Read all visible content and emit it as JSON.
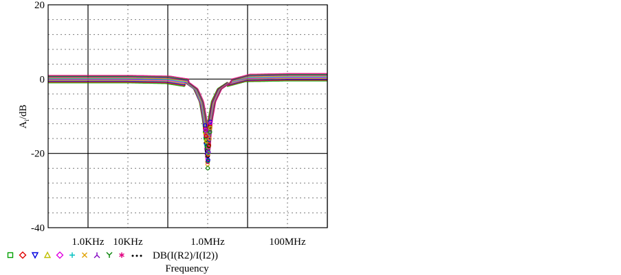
{
  "chart_data": {
    "type": "line",
    "title": "",
    "xlabel": "Frequency",
    "ylabel": "A_i/dB",
    "ylabel_main": "A",
    "ylabel_sub": "i",
    "ylabel_unit": "/dB",
    "x_scale": "log",
    "xlim": [
      100,
      1000000000
    ],
    "ylim": [
      -40,
      20
    ],
    "x_ticks": [
      {
        "value": 1000,
        "label": "1.0KHz"
      },
      {
        "value": 10000,
        "label": "10KHz"
      },
      {
        "value": 1000000,
        "label": "1.0MHz"
      },
      {
        "value": 100000000,
        "label": "100MHz"
      }
    ],
    "y_ticks": [
      {
        "value": 20,
        "label": "20"
      },
      {
        "value": 0,
        "label": "0"
      },
      {
        "value": -20,
        "label": "-20"
      },
      {
        "value": -40,
        "label": "-40"
      }
    ],
    "grid": true,
    "legend_position": "bottom-left",
    "legend_label": "DB(I(R2)/I(I2))",
    "legend_markers": [
      {
        "symbol": "square",
        "color": "#00a000"
      },
      {
        "symbol": "diamond",
        "color": "#e00000"
      },
      {
        "symbol": "triangle-down",
        "color": "#0000e0"
      },
      {
        "symbol": "triangle-up",
        "color": "#c0c000"
      },
      {
        "symbol": "diamond",
        "color": "#e000e0"
      },
      {
        "symbol": "plus",
        "color": "#00c0c0"
      },
      {
        "symbol": "x",
        "color": "#e0a000"
      },
      {
        "symbol": "y-inverted",
        "color": "#8000c0"
      },
      {
        "symbol": "y",
        "color": "#008000"
      },
      {
        "symbol": "asterisk",
        "color": "#e00080"
      },
      {
        "symbol": "dots",
        "color": "#000000"
      }
    ],
    "series": [
      {
        "x": [
          100,
          1000,
          10000,
          100000,
          300000,
          500000,
          700000,
          850000,
          950000,
          1000000,
          1050000,
          1150000,
          1400000,
          2000000,
          3500000,
          10000000,
          100000000,
          1000000000
        ],
        "y": [
          0,
          0,
          0,
          -0.2,
          -1,
          -3,
          -7,
          -13,
          -19,
          -23,
          -19,
          -13,
          -7,
          -3,
          -1,
          0.3,
          0.5,
          0.5
        ]
      }
    ]
  }
}
